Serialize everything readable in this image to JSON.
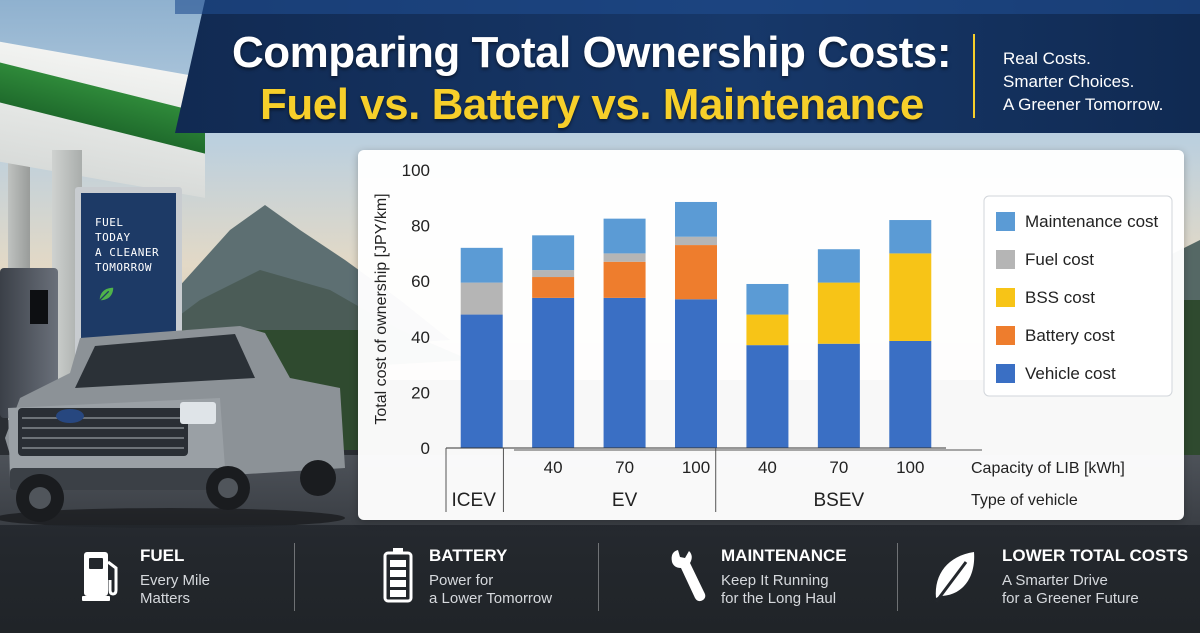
{
  "banner": {
    "title_line1": "Comparing Total Ownership Costs:",
    "title_line2": "Fuel vs. Battery vs. Maintenance",
    "tagline": [
      "Real Costs.",
      "Smarter Choices.",
      "A Greener Tomorrow."
    ]
  },
  "station_sign": {
    "text": "FUEL\nTODAY\nA CLEANER\nTOMORROW"
  },
  "colors": {
    "vehicle": "#3a6fc4",
    "battery": "#ee7d2d",
    "bss": "#f7c417",
    "fuel": "#b5b5b5",
    "maintenance": "#5b9bd5",
    "banner": "#14315e",
    "accent": "#f7cf2a"
  },
  "chart_data": {
    "type": "bar",
    "stacked": true,
    "ylabel": "Total cost of ownership [JPY/km]",
    "ylim": [
      0,
      100
    ],
    "yticks": [
      0,
      20,
      40,
      60,
      80,
      100
    ],
    "categories": [
      "ICEV",
      "EV 40",
      "EV 70",
      "EV 100",
      "BSEV 40",
      "BSEV 70",
      "BSEV 100"
    ],
    "capacity_label": "Capacity of LIB [kWh]",
    "type_label": "Type of vehicle",
    "capacity_ticks": [
      "",
      "40",
      "70",
      "100",
      "40",
      "70",
      "100"
    ],
    "vehicle_groups": [
      {
        "label": "ICEV",
        "span": [
          0,
          0
        ]
      },
      {
        "label": "EV",
        "span": [
          1,
          3
        ]
      },
      {
        "label": "BSEV",
        "span": [
          4,
          6
        ]
      }
    ],
    "series": [
      {
        "name": "Vehicle cost",
        "key": "vehicle",
        "values": [
          48,
          54,
          54,
          53.5,
          37,
          37.5,
          38.5
        ]
      },
      {
        "name": "Battery cost",
        "key": "battery",
        "values": [
          0,
          7.5,
          13,
          19.5,
          0,
          0,
          0
        ]
      },
      {
        "name": "BSS cost",
        "key": "bss",
        "values": [
          0,
          0,
          0,
          0,
          11,
          22,
          31.5
        ]
      },
      {
        "name": "Fuel cost",
        "key": "fuel",
        "values": [
          11.5,
          2.5,
          3,
          3,
          0,
          0,
          0
        ]
      },
      {
        "name": "Maintenance cost",
        "key": "maintenance",
        "values": [
          12.5,
          12.5,
          12.5,
          12.5,
          11,
          12,
          12
        ]
      }
    ],
    "legend_order": [
      "Maintenance cost",
      "Fuel cost",
      "BSS cost",
      "Battery cost",
      "Vehicle cost"
    ],
    "legend_position": "right"
  },
  "features": [
    {
      "title": "FUEL",
      "sub": [
        "Every Mile",
        "Matters"
      ],
      "icon": "fuel-pump-icon"
    },
    {
      "title": "BATTERY",
      "sub": [
        "Power for",
        "a Lower Tomorrow"
      ],
      "icon": "battery-icon"
    },
    {
      "title": "MAINTENANCE",
      "sub": [
        "Keep It Running",
        "for the Long Haul"
      ],
      "icon": "wrench-icon"
    },
    {
      "title": "LOWER TOTAL COSTS",
      "sub": [
        "A Smarter Drive",
        "for a Greener Future"
      ],
      "icon": "leaf-icon"
    }
  ]
}
